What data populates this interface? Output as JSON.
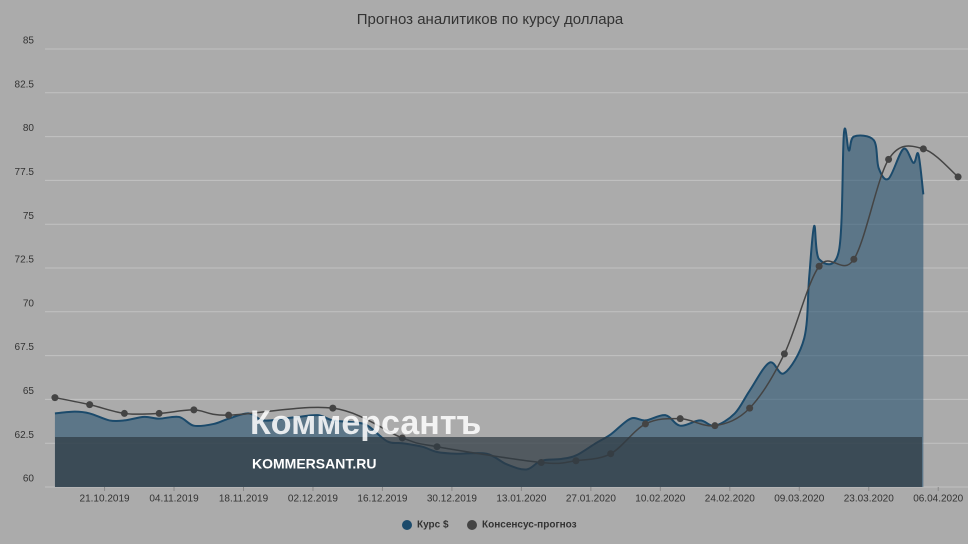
{
  "chart_data": {
    "type": "area-line",
    "title": "Прогноз аналитиков по курсу доллара",
    "ylim": [
      60,
      85
    ],
    "yticks": [
      60,
      62.5,
      65,
      67.5,
      70,
      72.5,
      75,
      77.5,
      80,
      82.5,
      85
    ],
    "xlim": [
      "2019-10-09",
      "2020-04-12"
    ],
    "xticks": [
      {
        "value": "2019-10-21",
        "label": "21.10.2019"
      },
      {
        "value": "2019-11-04",
        "label": "04.11.2019"
      },
      {
        "value": "2019-11-18",
        "label": "18.11.2019"
      },
      {
        "value": "2019-12-02",
        "label": "02.12.2019"
      },
      {
        "value": "2019-12-16",
        "label": "16.12.2019"
      },
      {
        "value": "2019-12-30",
        "label": "30.12.2019"
      },
      {
        "value": "2020-01-13",
        "label": "13.01.2020"
      },
      {
        "value": "2020-01-27",
        "label": "27.01.2020"
      },
      {
        "value": "2020-02-10",
        "label": "10.02.2020"
      },
      {
        "value": "2020-02-24",
        "label": "24.02.2020"
      },
      {
        "value": "2020-03-09",
        "label": "09.03.2020"
      },
      {
        "value": "2020-03-23",
        "label": "23.03.2020"
      },
      {
        "value": "2020-04-06",
        "label": "06.04.2020"
      }
    ],
    "grid": true,
    "series": [
      {
        "name": "Курс $",
        "color": "#1b4a6b",
        "kind": "area",
        "x": [
          "2019-10-11",
          "2019-10-15",
          "2019-10-18",
          "2019-10-22",
          "2019-10-25",
          "2019-10-29",
          "2019-11-01",
          "2019-11-05",
          "2019-11-08",
          "2019-11-12",
          "2019-11-15",
          "2019-11-19",
          "2019-11-22",
          "2019-11-26",
          "2019-11-29",
          "2019-12-03",
          "2019-12-06",
          "2019-12-10",
          "2019-12-13",
          "2019-12-17",
          "2019-12-20",
          "2019-12-24",
          "2019-12-27",
          "2019-12-31",
          "2020-01-06",
          "2020-01-10",
          "2020-01-14",
          "2020-01-17",
          "2020-01-21",
          "2020-01-24",
          "2020-01-28",
          "2020-01-31",
          "2020-02-04",
          "2020-02-07",
          "2020-02-11",
          "2020-02-14",
          "2020-02-18",
          "2020-02-21",
          "2020-02-25",
          "2020-02-28",
          "2020-03-03",
          "2020-03-06",
          "2020-03-10",
          "2020-03-11",
          "2020-03-12",
          "2020-03-13",
          "2020-03-17",
          "2020-03-18",
          "2020-03-19",
          "2020-03-20",
          "2020-03-24",
          "2020-03-25",
          "2020-03-27",
          "2020-03-30",
          "2020-04-01",
          "2020-04-02",
          "2020-04-03"
        ],
        "values": [
          64.2,
          64.3,
          64.2,
          63.8,
          63.8,
          64.0,
          63.9,
          64.0,
          63.5,
          63.6,
          63.9,
          64.2,
          63.8,
          63.9,
          64.0,
          64.1,
          63.8,
          63.7,
          63.5,
          62.6,
          62.5,
          62.3,
          62.0,
          61.9,
          61.9,
          61.3,
          61.0,
          61.5,
          61.6,
          61.8,
          62.5,
          63.0,
          63.9,
          63.8,
          64.1,
          63.5,
          63.8,
          63.5,
          64.2,
          65.5,
          67.1,
          66.5,
          68.5,
          72.0,
          74.9,
          73.0,
          73.5,
          80.2,
          79.2,
          80.0,
          79.8,
          78.2,
          77.6,
          79.3,
          78.5,
          79.0,
          76.7
        ]
      },
      {
        "name": "Консенсус-прогноз",
        "color": "#444444",
        "kind": "line",
        "x": [
          "2019-10-11",
          "2019-10-18",
          "2019-10-25",
          "2019-11-01",
          "2019-11-08",
          "2019-11-15",
          "2019-12-06",
          "2019-12-20",
          "2019-12-27",
          "2020-01-17",
          "2020-01-24",
          "2020-01-31",
          "2020-02-07",
          "2020-02-14",
          "2020-02-21",
          "2020-02-28",
          "2020-03-06",
          "2020-03-13",
          "2020-03-20",
          "2020-03-27",
          "2020-04-03",
          "2020-04-10"
        ],
        "values": [
          65.1,
          64.7,
          64.2,
          64.2,
          64.4,
          64.1,
          64.5,
          62.8,
          62.3,
          61.4,
          61.5,
          61.9,
          63.6,
          63.9,
          63.5,
          64.5,
          67.6,
          72.6,
          73.0,
          78.7,
          79.3,
          77.7
        ]
      }
    ]
  },
  "watermark": {
    "logo": "Коммерсантъ",
    "url": "KOMMERSANT.RU"
  }
}
